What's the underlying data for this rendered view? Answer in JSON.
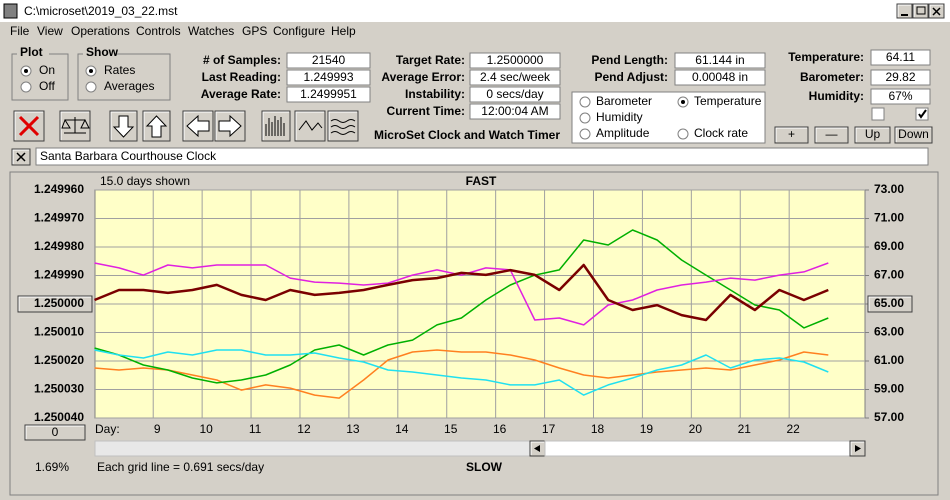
{
  "window": {
    "title": "C:\\microset\\2019_03_22.mst"
  },
  "menu": [
    "File",
    "View",
    "Operations",
    "Controls",
    "Watches",
    "GPS",
    "Configure",
    "Help"
  ],
  "plot_group": {
    "title": "Plot",
    "options": [
      "On",
      "Off"
    ],
    "selected": 0
  },
  "show_group": {
    "title": "Show",
    "options": [
      "Rates",
      "Averages"
    ],
    "selected": 0
  },
  "fields": [
    {
      "label": "# of Samples:",
      "value": "21540"
    },
    {
      "label": "Last Reading:",
      "value": "1.249993"
    },
    {
      "label": "Average Rate:",
      "value": "1.2499951"
    },
    {
      "label": "Target Rate:",
      "value": "1.2500000"
    },
    {
      "label": "Average Error:",
      "value": "2.4 sec/week"
    },
    {
      "label": "Instability:",
      "value": "0 secs/day"
    },
    {
      "label": "Current Time:",
      "value": "12:00:04 AM"
    },
    {
      "label": "Pend Length:",
      "value": "61.144 in"
    },
    {
      "label": "Pend Adjust:",
      "value": "0.00048 in"
    },
    {
      "label": "Temperature:",
      "value": "64.11"
    },
    {
      "label": "Barometer:",
      "value": "29.82"
    },
    {
      "label": "Humidity:",
      "value": "67%"
    }
  ],
  "app_name": "MicroSet Clock and Watch Timer",
  "buttons": [
    "+",
    "—",
    "Up",
    "Down"
  ],
  "clock_name": "Santa Barbara Courthouse Clock",
  "chart_data": {
    "type": "line",
    "days_shown": "15.0 days shown",
    "top_label": "FAST",
    "bottom_label": "SLOW",
    "xlabel": "Day:",
    "grid_note": "Each grid line = 0.691 secs/day",
    "percent": "1.69%",
    "offset_button": "0",
    "legend_selected": 1,
    "grid": true,
    "xlim": [
      7.81,
      23.55
    ],
    "xticks": [
      9,
      10,
      11,
      12,
      13,
      14,
      15,
      16,
      17,
      18,
      19,
      20,
      21,
      22
    ],
    "ylim": [
      1.25004,
      1.24996
    ],
    "yticks": [
      {
        "value": 1.24996,
        "label": "1.249960"
      },
      {
        "value": 1.24997,
        "label": "1.249970"
      },
      {
        "value": 1.24998,
        "label": "1.249980"
      },
      {
        "value": 1.24999,
        "label": "1.249990"
      },
      {
        "value": 1.25,
        "label": "1.250000"
      },
      {
        "value": 1.25001,
        "label": "1.250010"
      },
      {
        "value": 1.25002,
        "label": "1.250020"
      },
      {
        "value": 1.25003,
        "label": "1.250030"
      },
      {
        "value": 1.25004,
        "label": "1.250040"
      }
    ],
    "y2lim": [
      57,
      73
    ],
    "y2ticks": [
      {
        "value": 73,
        "label": "73.00"
      },
      {
        "value": 71,
        "label": "71.00"
      },
      {
        "value": 69,
        "label": "69.00"
      },
      {
        "value": 67,
        "label": "67.00"
      },
      {
        "value": 65,
        "label": "65.00"
      },
      {
        "value": 63,
        "label": "63.00"
      },
      {
        "value": 61,
        "label": "61.00"
      },
      {
        "value": 59,
        "label": "59.00"
      },
      {
        "value": 57,
        "label": "57.00"
      }
    ],
    "x": [
      7.8,
      8.3,
      8.8,
      9.3,
      9.8,
      10.3,
      10.8,
      11.3,
      11.8,
      12.3,
      12.8,
      13.3,
      13.8,
      14.3,
      14.8,
      15.3,
      15.8,
      16.3,
      16.8,
      17.3,
      17.8,
      18.3,
      18.8,
      19.3,
      19.8,
      20.3,
      20.8,
      21.3,
      21.8,
      22.3,
      22.8
    ],
    "series": [
      {
        "name": "Barometer",
        "color": "#ff8020",
        "axis": "y2",
        "values": [
          60.51,
          60.37,
          60.51,
          60.37,
          60.02,
          59.67,
          58.96,
          59.32,
          59.1,
          58.61,
          58.4,
          59.67,
          61.07,
          61.63,
          61.77,
          61.63,
          61.63,
          61.42,
          61.07,
          60.51,
          60.02,
          59.81,
          60.02,
          60.23,
          60.37,
          60.51,
          60.37,
          60.72,
          61.07,
          61.63,
          61.42
        ]
      },
      {
        "name": "Temperature",
        "color": "#00b000",
        "axis": "y2",
        "values": [
          61.91,
          61.42,
          60.72,
          60.37,
          59.81,
          59.46,
          59.67,
          60.02,
          60.72,
          61.77,
          62.12,
          61.42,
          62.12,
          62.47,
          63.53,
          64.02,
          65.28,
          66.33,
          67.03,
          67.39,
          69.49,
          69.14,
          70.19,
          69.49,
          68.09,
          67.03,
          65.98,
          64.93,
          64.58,
          63.32,
          64.02
        ]
      },
      {
        "name": "Humidity",
        "color": "#e020e0",
        "axis": "y2",
        "values": [
          67.88,
          67.53,
          67.03,
          67.74,
          67.53,
          67.74,
          67.74,
          67.74,
          66.82,
          66.54,
          66.47,
          66.33,
          66.47,
          67.03,
          67.39,
          67.03,
          67.53,
          67.39,
          63.88,
          64.02,
          63.53,
          64.93,
          65.28,
          65.98,
          66.33,
          66.54,
          66.82,
          66.68,
          67.03,
          67.25,
          67.88
        ]
      },
      {
        "name": "Amplitude",
        "color": "#20e0f0",
        "axis": "y2",
        "values": [
          61.77,
          61.42,
          61.21,
          61.63,
          61.42,
          61.77,
          61.77,
          61.42,
          61.42,
          61.56,
          61.21,
          60.93,
          60.37,
          60.23,
          60.02,
          59.81,
          59.67,
          59.32,
          59.32,
          59.67,
          58.61,
          59.32,
          59.81,
          60.37,
          60.72,
          61.42,
          60.51,
          61.07,
          61.21,
          60.93,
          60.23
        ]
      },
      {
        "name": "Clock rate",
        "color": "#7a0000",
        "axis": "y",
        "values": [
          1.2499986,
          1.2499951,
          1.2499951,
          1.2499961,
          1.2499951,
          1.2499933,
          1.2499968,
          1.2499986,
          1.2499951,
          1.2499968,
          1.2499961,
          1.2499951,
          1.2499933,
          1.2499916,
          1.2499909,
          1.2499891,
          1.2499898,
          1.2499881,
          1.2499898,
          1.2499951,
          1.2499863,
          1.2499986,
          1.2500021,
          1.2500004,
          1.2500039,
          1.2500056,
          1.2499968,
          1.2500021,
          1.2499951,
          1.2499986,
          1.2499951
        ]
      }
    ]
  }
}
